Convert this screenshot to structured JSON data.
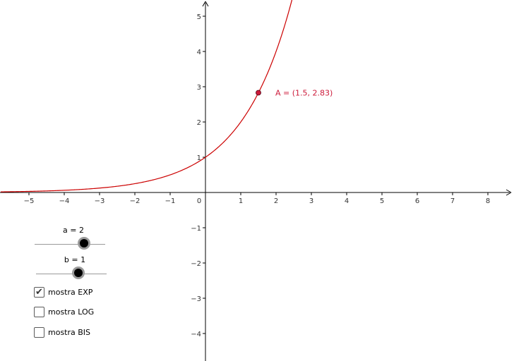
{
  "chart_data": {
    "type": "line",
    "function": "2^x",
    "x_ticks": [
      -5,
      -4,
      -3,
      -2,
      -1,
      0,
      1,
      2,
      3,
      4,
      5,
      6,
      7,
      8
    ],
    "y_ticks": [
      -4,
      -3,
      -2,
      -1,
      1,
      2,
      3,
      4,
      5
    ],
    "xlim": [
      -5.8,
      8.9
    ],
    "ylim": [
      -4.75,
      5.45
    ],
    "grid": false,
    "series": [
      {
        "color": "#cc0000",
        "x": [
          -5.8,
          -5,
          -4,
          -3,
          -2,
          -1,
          0,
          0.5,
          1,
          1.5,
          2,
          2.5
        ],
        "y": [
          0.018,
          0.031,
          0.063,
          0.125,
          0.25,
          0.5,
          1,
          1.41,
          2,
          2.83,
          4,
          5.66
        ]
      }
    ],
    "point": {
      "x": 1.5,
      "y": 2.83,
      "label": "A = (1.5, 2.83)",
      "color": "#cc1a3a"
    }
  },
  "controls": {
    "slider_a": {
      "label": "a = 2",
      "value": 2,
      "fraction": 0.7
    },
    "slider_b": {
      "label": "b = 1",
      "value": 1,
      "fraction": 0.6
    },
    "checkboxes": [
      {
        "label": "mostra EXP",
        "checked": true
      },
      {
        "label": "mostra LOG",
        "checked": false
      },
      {
        "label": "mostra BIS",
        "checked": false
      }
    ]
  }
}
